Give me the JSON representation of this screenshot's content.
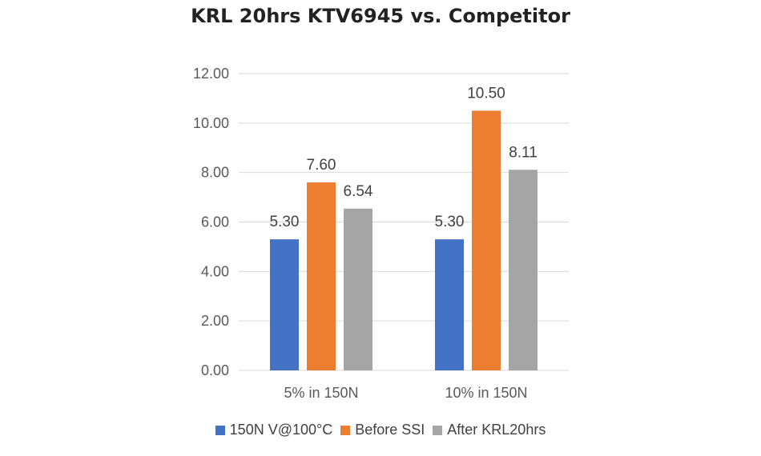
{
  "chart_data": {
    "type": "bar",
    "title": "KRL 20hrs KTV6945 vs. Competitor",
    "categories": [
      "5% in 150N",
      "10% in 150N"
    ],
    "series": [
      {
        "name": "150N V@100°C",
        "values": [
          5.3,
          5.3
        ],
        "color": "#4472C4"
      },
      {
        "name": "Before SSI",
        "values": [
          7.6,
          10.5
        ],
        "color": "#ED7D31"
      },
      {
        "name": "After KRL20hrs",
        "values": [
          6.54,
          8.11
        ],
        "color": "#A5A5A5"
      }
    ],
    "ylim": [
      0,
      12
    ],
    "ytick_step": 2,
    "ytick_format": "0.00",
    "data_labels": true,
    "grid": true,
    "legend_position": "bottom"
  }
}
